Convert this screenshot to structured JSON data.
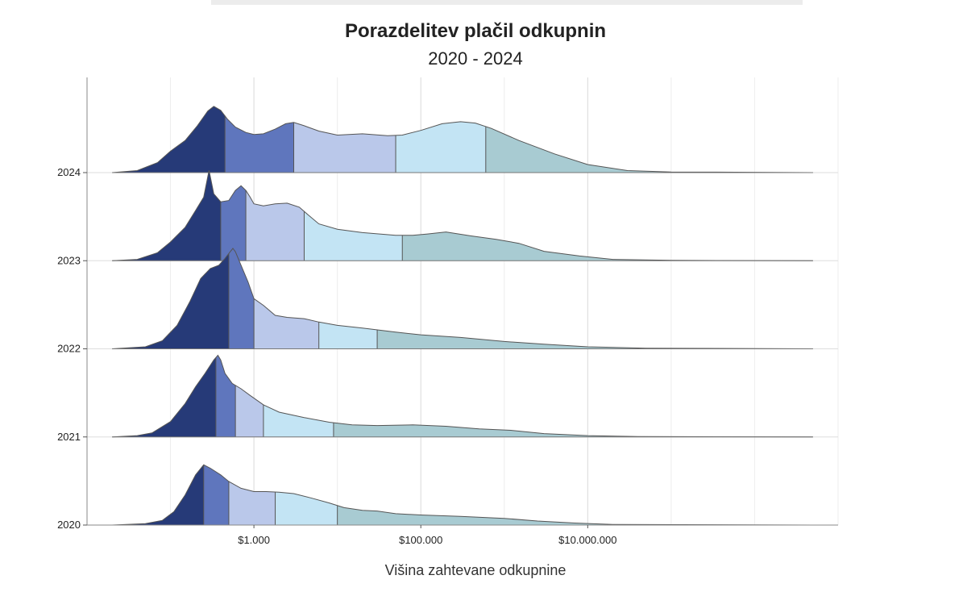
{
  "chart_data": {
    "type": "ridgeline",
    "title": "Porazdelitev plačil odkupnin",
    "subtitle": "2020 - 2024",
    "xlabel": "Višina zahtevane odkupnine",
    "ylabel": "",
    "x_scale": "log",
    "xlim": [
      10,
      10000000000
    ],
    "x_ticks": [
      {
        "value": 1000,
        "label": "$1.000"
      },
      {
        "value": 100000,
        "label": "$100.000"
      },
      {
        "value": 10000000,
        "label": "$10.000.000"
      }
    ],
    "grid": true,
    "band_colors": [
      "#263a78",
      "#5f76bd",
      "#bac8ea",
      "#c3e4f4",
      "#a8cbd2"
    ],
    "outline_color": "#555555",
    "categories": [
      "2024",
      "2023",
      "2022",
      "2021",
      "2020"
    ],
    "series": [
      {
        "name": "2024",
        "quantile_breaks": [
          450,
          3000,
          50000,
          600000
        ],
        "density": [
          [
            20,
            0
          ],
          [
            40,
            0.03
          ],
          [
            70,
            0.15
          ],
          [
            100,
            0.32
          ],
          [
            150,
            0.48
          ],
          [
            210,
            0.7
          ],
          [
            280,
            0.92
          ],
          [
            330,
            0.99
          ],
          [
            400,
            0.93
          ],
          [
            480,
            0.8
          ],
          [
            600,
            0.68
          ],
          [
            800,
            0.6
          ],
          [
            1000,
            0.57
          ],
          [
            1300,
            0.58
          ],
          [
            1800,
            0.65
          ],
          [
            2400,
            0.73
          ],
          [
            3000,
            0.75
          ],
          [
            4000,
            0.7
          ],
          [
            6000,
            0.62
          ],
          [
            10000,
            0.56
          ],
          [
            20000,
            0.58
          ],
          [
            40000,
            0.55
          ],
          [
            60000,
            0.56
          ],
          [
            100000,
            0.63
          ],
          [
            180000,
            0.73
          ],
          [
            300000,
            0.76
          ],
          [
            450000,
            0.74
          ],
          [
            700000,
            0.66
          ],
          [
            1500000,
            0.48
          ],
          [
            4000000,
            0.28
          ],
          [
            10000000,
            0.12
          ],
          [
            30000000,
            0.03
          ],
          [
            100000000,
            0.01
          ],
          [
            1000000000,
            0.005
          ],
          [
            5000000000,
            0
          ]
        ]
      },
      {
        "name": "2023",
        "quantile_breaks": [
          400,
          800,
          4000,
          60000
        ],
        "density": [
          [
            20,
            0
          ],
          [
            40,
            0.02
          ],
          [
            70,
            0.12
          ],
          [
            100,
            0.28
          ],
          [
            150,
            0.5
          ],
          [
            200,
            0.75
          ],
          [
            250,
            0.95
          ],
          [
            290,
            1.35
          ],
          [
            330,
            1.0
          ],
          [
            400,
            0.88
          ],
          [
            500,
            0.9
          ],
          [
            600,
            1.05
          ],
          [
            700,
            1.12
          ],
          [
            800,
            1.05
          ],
          [
            900,
            0.95
          ],
          [
            1000,
            0.85
          ],
          [
            1300,
            0.82
          ],
          [
            1800,
            0.85
          ],
          [
            2500,
            0.86
          ],
          [
            3500,
            0.8
          ],
          [
            4500,
            0.68
          ],
          [
            6000,
            0.55
          ],
          [
            10000,
            0.47
          ],
          [
            20000,
            0.42
          ],
          [
            50000,
            0.38
          ],
          [
            80000,
            0.38
          ],
          [
            120000,
            0.4
          ],
          [
            200000,
            0.43
          ],
          [
            400000,
            0.37
          ],
          [
            800000,
            0.32
          ],
          [
            1500000,
            0.26
          ],
          [
            3000000,
            0.14
          ],
          [
            8000000,
            0.07
          ],
          [
            20000000,
            0.02
          ],
          [
            100000000,
            0.005
          ],
          [
            5000000000,
            0
          ]
        ]
      },
      {
        "name": "2022",
        "quantile_breaks": [
          500,
          1000,
          6000,
          30000
        ],
        "density": [
          [
            20,
            0
          ],
          [
            50,
            0.03
          ],
          [
            80,
            0.12
          ],
          [
            120,
            0.35
          ],
          [
            170,
            0.7
          ],
          [
            230,
            1.05
          ],
          [
            300,
            1.2
          ],
          [
            380,
            1.25
          ],
          [
            450,
            1.35
          ],
          [
            520,
            1.45
          ],
          [
            560,
            1.5
          ],
          [
            600,
            1.45
          ],
          [
            700,
            1.25
          ],
          [
            850,
            1.0
          ],
          [
            1000,
            0.75
          ],
          [
            1300,
            0.65
          ],
          [
            1800,
            0.5
          ],
          [
            2500,
            0.47
          ],
          [
            4000,
            0.45
          ],
          [
            6000,
            0.4
          ],
          [
            10000,
            0.35
          ],
          [
            20000,
            0.31
          ],
          [
            50000,
            0.25
          ],
          [
            100000,
            0.21
          ],
          [
            300000,
            0.17
          ],
          [
            1000000,
            0.11
          ],
          [
            3000000,
            0.07
          ],
          [
            10000000,
            0.03
          ],
          [
            50000000,
            0.01
          ],
          [
            5000000000,
            0
          ]
        ]
      },
      {
        "name": "2021",
        "quantile_breaks": [
          350,
          600,
          1300,
          9000
        ],
        "density": [
          [
            20,
            0
          ],
          [
            40,
            0.02
          ],
          [
            60,
            0.06
          ],
          [
            100,
            0.23
          ],
          [
            150,
            0.5
          ],
          [
            200,
            0.75
          ],
          [
            260,
            0.95
          ],
          [
            330,
            1.15
          ],
          [
            370,
            1.22
          ],
          [
            400,
            1.15
          ],
          [
            450,
            0.95
          ],
          [
            550,
            0.8
          ],
          [
            700,
            0.72
          ],
          [
            900,
            0.62
          ],
          [
            1300,
            0.48
          ],
          [
            2000,
            0.37
          ],
          [
            4000,
            0.29
          ],
          [
            8000,
            0.22
          ],
          [
            15000,
            0.18
          ],
          [
            30000,
            0.17
          ],
          [
            80000,
            0.18
          ],
          [
            200000,
            0.16
          ],
          [
            500000,
            0.12
          ],
          [
            1200000,
            0.1
          ],
          [
            3000000,
            0.05
          ],
          [
            10000000,
            0.02
          ],
          [
            40000000,
            0.005
          ],
          [
            5000000000,
            0
          ]
        ]
      },
      {
        "name": "2020",
        "quantile_breaks": [
          250,
          500,
          1800,
          10000
        ],
        "density": [
          [
            20,
            0
          ],
          [
            50,
            0.02
          ],
          [
            80,
            0.07
          ],
          [
            110,
            0.2
          ],
          [
            150,
            0.45
          ],
          [
            200,
            0.75
          ],
          [
            250,
            0.9
          ],
          [
            300,
            0.85
          ],
          [
            400,
            0.75
          ],
          [
            500,
            0.65
          ],
          [
            700,
            0.55
          ],
          [
            1000,
            0.5
          ],
          [
            1400,
            0.5
          ],
          [
            2000,
            0.49
          ],
          [
            3000,
            0.47
          ],
          [
            5000,
            0.4
          ],
          [
            8000,
            0.33
          ],
          [
            12000,
            0.26
          ],
          [
            20000,
            0.22
          ],
          [
            30000,
            0.21
          ],
          [
            50000,
            0.17
          ],
          [
            100000,
            0.15
          ],
          [
            300000,
            0.13
          ],
          [
            1000000,
            0.1
          ],
          [
            2500000,
            0.06
          ],
          [
            7000000,
            0.03
          ],
          [
            20000000,
            0.01
          ],
          [
            5000000000,
            0
          ]
        ]
      }
    ]
  }
}
